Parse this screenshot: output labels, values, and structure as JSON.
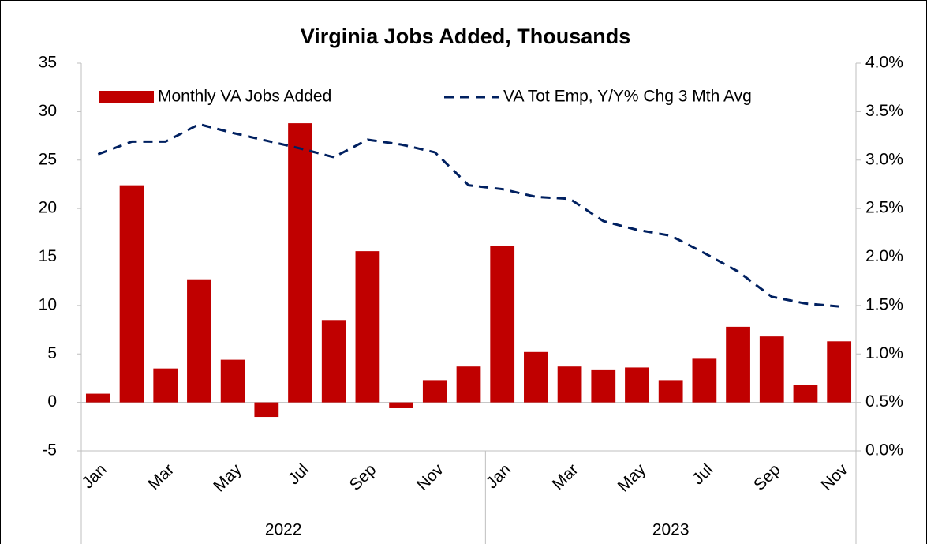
{
  "chart_data": {
    "type": "bar_line",
    "title": "Virginia Jobs Added, Thousands",
    "categories": [
      "Jan",
      null,
      "Mar",
      null,
      "May",
      null,
      "Jul",
      null,
      "Sep",
      null,
      "Nov",
      null,
      "Jan",
      null,
      "Mar",
      null,
      "May",
      null,
      "Jul",
      null,
      "Sep",
      null,
      "Nov"
    ],
    "x_groups": [
      "2022",
      "2023"
    ],
    "series": [
      {
        "name": "Monthly VA Jobs Added",
        "type": "bar",
        "color": "#c00000",
        "values": [
          0.9,
          22.4,
          3.5,
          12.7,
          4.4,
          -1.5,
          28.8,
          8.5,
          15.6,
          -0.6,
          2.3,
          3.7,
          16.1,
          5.2,
          3.7,
          3.4,
          3.6,
          2.3,
          4.5,
          7.8,
          6.8,
          1.8,
          6.3
        ]
      },
      {
        "name": "VA Tot Emp, Y/Y% Chg 3 Mth Avg",
        "type": "line",
        "axis": "y2",
        "color": "#002060",
        "dash": true,
        "values": [
          3.06,
          3.19,
          3.19,
          3.37,
          3.28,
          3.2,
          3.12,
          3.03,
          3.21,
          3.16,
          3.08,
          2.74,
          2.7,
          2.62,
          2.6,
          2.37,
          2.28,
          2.22,
          2.04,
          1.85,
          1.59,
          1.52,
          1.49
        ]
      }
    ],
    "ylim": [
      -5,
      35
    ],
    "yticks": [
      -5,
      0,
      5,
      10,
      15,
      20,
      25,
      30,
      35
    ],
    "y2lim": [
      0,
      4
    ],
    "y2ticks": [
      {
        "value": 0,
        "label": "0.0%"
      },
      {
        "value": 0.5,
        "label": "0.5%"
      },
      {
        "value": 1,
        "label": "1.0%"
      },
      {
        "value": 1.5,
        "label": "1.5%"
      },
      {
        "value": 2,
        "label": "2.0%"
      },
      {
        "value": 2.5,
        "label": "2.5%"
      },
      {
        "value": 3,
        "label": "3.0%"
      },
      {
        "value": 3.5,
        "label": "3.5%"
      },
      {
        "value": 4,
        "label": "4.0%"
      }
    ],
    "grid": false,
    "legend": "top"
  }
}
